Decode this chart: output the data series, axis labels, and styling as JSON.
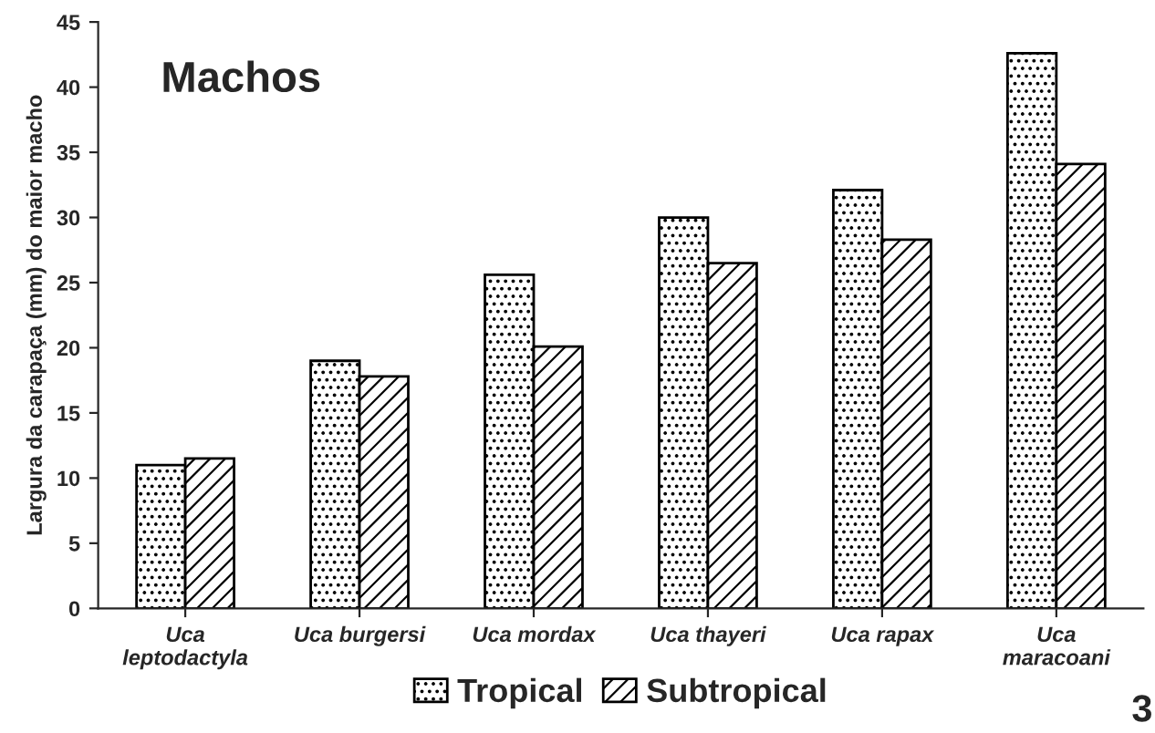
{
  "chart_data": {
    "type": "bar",
    "title": "Machos",
    "ylabel": "Largura da carapaça (mm) do maior macho",
    "categories": [
      "Uca\nleptodactyla",
      "Uca burgersi",
      "Uca mordax",
      "Uca thayeri",
      "Uca rapax",
      "Uca\nmaracoani"
    ],
    "series": [
      {
        "name": "Tropical",
        "color": "#000000",
        "values": [
          11.0,
          19.0,
          25.6,
          30.0,
          32.1,
          42.6
        ]
      },
      {
        "name": "Subtropical",
        "color": "#000000",
        "values": [
          11.5,
          17.8,
          20.1,
          26.5,
          28.3,
          34.1
        ]
      }
    ],
    "ylim": [
      0,
      45
    ],
    "yticks": [
      0,
      5,
      10,
      15,
      20,
      25,
      30,
      35,
      40,
      45
    ],
    "legend": "bottom",
    "grid": false,
    "annotations": [
      "3"
    ]
  }
}
